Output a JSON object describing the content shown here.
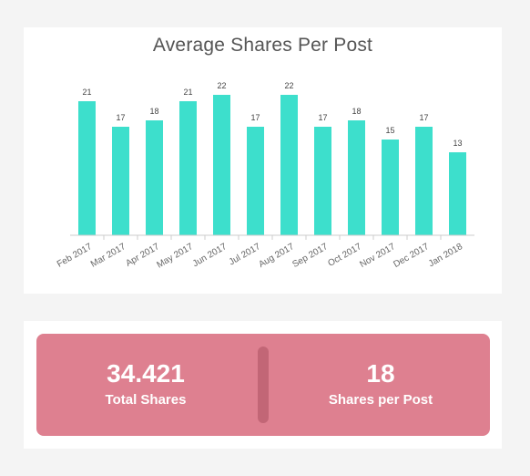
{
  "chart_data": {
    "type": "bar",
    "title": "Average Shares Per Post",
    "categories": [
      "Feb 2017",
      "Mar 2017",
      "Apr 2017",
      "May 2017",
      "Jun 2017",
      "Jul 2017",
      "Aug 2017",
      "Sep 2017",
      "Oct 2017",
      "Nov 2017",
      "Dec 2017",
      "Jan 2018"
    ],
    "values": [
      21,
      17,
      18,
      21,
      22,
      17,
      22,
      17,
      18,
      15,
      17,
      13
    ],
    "xlabel": "",
    "ylabel": "",
    "ylim": [
      0,
      22
    ],
    "grid": false,
    "colors": {
      "bar": "#3ddfcc"
    }
  },
  "kpis": {
    "total_shares": {
      "value": "34.421",
      "label": "Total Shares"
    },
    "shares_per_post": {
      "value": "18",
      "label": "Shares per Post"
    },
    "colors": {
      "panel": "#de8090",
      "divider": "#c26676"
    }
  }
}
